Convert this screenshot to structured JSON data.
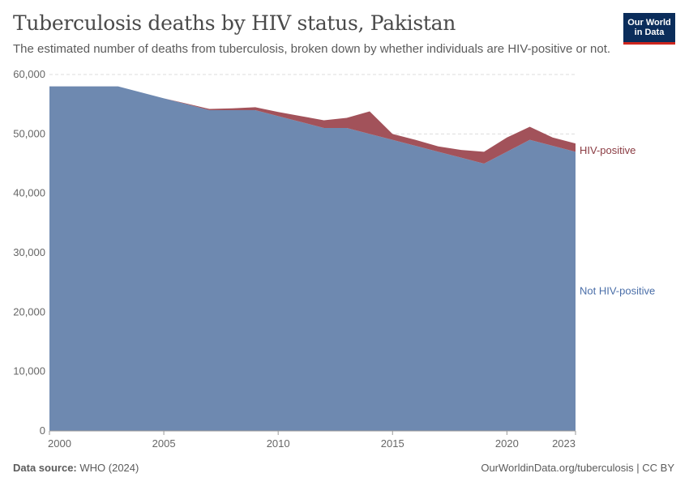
{
  "header": {
    "title": "Tuberculosis deaths by HIV status, Pakistan",
    "subtitle": "The estimated number of deaths from tuberculosis, broken down by whether individuals are HIV-positive or not.",
    "logo_line1": "Our World",
    "logo_line2": "in Data"
  },
  "footer": {
    "source_label": "Data source:",
    "source_value": "WHO (2024)",
    "url_license": "OurWorldinData.org/tuberculosis | CC BY"
  },
  "colors": {
    "not_hiv": "#6e89b0",
    "hiv": "#a2525a",
    "hiv_label": "#8a3b42",
    "not_hiv_label": "#4a6ea8",
    "grid": "#dddddd"
  },
  "chart_data": {
    "type": "area",
    "stacked": true,
    "x": [
      2000,
      2001,
      2002,
      2003,
      2004,
      2005,
      2006,
      2007,
      2008,
      2009,
      2010,
      2011,
      2012,
      2013,
      2014,
      2015,
      2016,
      2017,
      2018,
      2019,
      2020,
      2021,
      2022,
      2023
    ],
    "series": [
      {
        "name": "Not HIV-positive",
        "values": [
          58000,
          58000,
          58000,
          58000,
          57000,
          56000,
          55000,
          54000,
          54000,
          54000,
          53000,
          52000,
          51000,
          51000,
          50000,
          49000,
          48000,
          47000,
          46000,
          45000,
          47000,
          49000,
          48000,
          47000
        ]
      },
      {
        "name": "HIV-positive",
        "values": [
          0,
          0,
          0,
          0,
          0,
          0,
          100,
          200,
          300,
          500,
          700,
          1000,
          1300,
          1700,
          3800,
          1000,
          1000,
          900,
          1300,
          2000,
          2400,
          2200,
          1400,
          1400
        ]
      }
    ],
    "xticks": [
      2000,
      2005,
      2010,
      2015,
      2020,
      2023
    ],
    "yticks": [
      0,
      10000,
      20000,
      30000,
      40000,
      50000,
      60000
    ],
    "ytick_labels": [
      "0",
      "10,000",
      "20,000",
      "30,000",
      "40,000",
      "50,000",
      "60,000"
    ],
    "xlim": [
      2000,
      2023
    ],
    "ylim": [
      0,
      60000
    ],
    "grid": "horizontal-dashed",
    "legend": "inline-right"
  }
}
